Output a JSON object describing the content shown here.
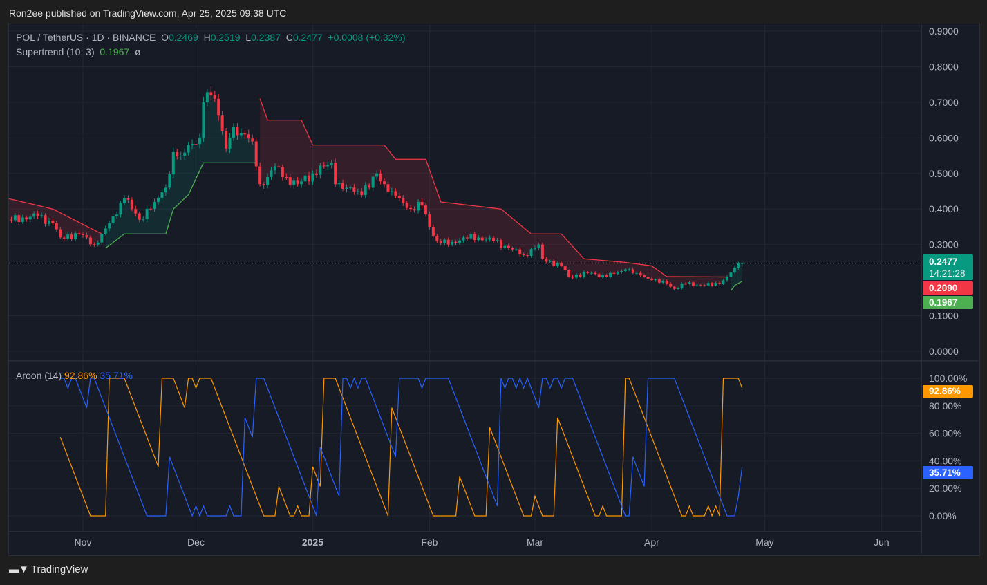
{
  "publish_line": "Ron2ee published on TradingView.com, Apr 25, 2025 09:38 UTC",
  "legend": {
    "symbol": "POL / TetherUS · 1D · BINANCE",
    "o_label": "O",
    "o": "0.2469",
    "h_label": "H",
    "h": "0.2519",
    "l_label": "L",
    "l": "0.2387",
    "c_label": "C",
    "c": "0.2477",
    "change": "+0.0008 (+0.32%)",
    "supertrend_label": "Supertrend (10, 3)",
    "supertrend_value": "0.1967",
    "supertrend_symbol": "ø",
    "aroon_label": "Aroon (14)",
    "aroon_up": "92.86%",
    "aroon_down": "35.71%"
  },
  "price_tags": {
    "last_price": "0.2477",
    "countdown": "14:21:28",
    "supertrend_down": "0.2090",
    "supertrend_up": "0.1967",
    "aroon_up": "92.86%",
    "aroon_down": "35.71%"
  },
  "footer": {
    "brand": "TradingView"
  },
  "colors": {
    "up": "#089981",
    "down": "#f23645",
    "supertrend_up": "#4caf50",
    "supertrend_down": "#f23645",
    "aroon_up": "#ff9800",
    "aroon_down": "#2962ff",
    "background": "#171b26"
  },
  "chart_data": {
    "type": "candlestick",
    "interval": "1D",
    "price_axis": {
      "ticks": [
        "0.9000",
        "0.8000",
        "0.7000",
        "0.6000",
        "0.5000",
        "0.4000",
        "0.3000",
        "0.1000",
        "0.0000"
      ],
      "range": [
        0,
        0.9
      ]
    },
    "aroon_axis": {
      "ticks": [
        "100.00%",
        "80.00%",
        "60.00%",
        "40.00%",
        "20.00%",
        "0.00%"
      ],
      "range": [
        0,
        100
      ]
    },
    "time_axis": [
      {
        "label": "Nov",
        "date": "2024-11-01"
      },
      {
        "label": "Dec",
        "date": "2024-12-01"
      },
      {
        "label": "2025",
        "date": "2025-01-01",
        "bold": true
      },
      {
        "label": "Feb",
        "date": "2025-02-01"
      },
      {
        "label": "Mar",
        "date": "2025-03-01"
      },
      {
        "label": "Apr",
        "date": "2025-04-01"
      },
      {
        "label": "May",
        "date": "2025-05-01"
      },
      {
        "label": "Jun",
        "date": "2025-06-01"
      }
    ],
    "close_keypoints": [
      [
        "2024-10-12",
        0.37
      ],
      [
        "2024-10-20",
        0.38
      ],
      [
        "2024-10-24",
        0.36
      ],
      [
        "2024-10-26",
        0.32
      ],
      [
        "2024-10-31",
        0.33
      ],
      [
        "2024-11-04",
        0.3
      ],
      [
        "2024-11-06",
        0.33
      ],
      [
        "2024-11-08",
        0.36
      ],
      [
        "2024-11-12",
        0.43
      ],
      [
        "2024-11-14",
        0.4
      ],
      [
        "2024-11-16",
        0.37
      ],
      [
        "2024-11-20",
        0.42
      ],
      [
        "2024-11-23",
        0.46
      ],
      [
        "2024-11-25",
        0.56
      ],
      [
        "2024-11-27",
        0.55
      ],
      [
        "2024-11-29",
        0.58
      ],
      [
        "2024-12-02",
        0.6
      ],
      [
        "2024-12-03",
        0.7
      ],
      [
        "2024-12-05",
        0.72
      ],
      [
        "2024-12-06",
        0.71
      ],
      [
        "2024-12-08",
        0.62
      ],
      [
        "2024-12-09",
        0.57
      ],
      [
        "2024-12-10",
        0.6
      ],
      [
        "2024-12-11",
        0.63
      ],
      [
        "2024-12-14",
        0.61
      ],
      [
        "2024-12-16",
        0.59
      ],
      [
        "2024-12-17",
        0.52
      ],
      [
        "2024-12-18",
        0.47
      ],
      [
        "2024-12-20",
        0.49
      ],
      [
        "2024-12-22",
        0.52
      ],
      [
        "2024-12-24",
        0.49
      ],
      [
        "2024-12-28",
        0.47
      ],
      [
        "2025-01-01",
        0.5
      ],
      [
        "2025-01-04",
        0.52
      ],
      [
        "2025-01-06",
        0.53
      ],
      [
        "2025-01-07",
        0.47
      ],
      [
        "2025-01-10",
        0.46
      ],
      [
        "2025-01-13",
        0.45
      ],
      [
        "2025-01-16",
        0.46
      ],
      [
        "2025-01-18",
        0.5
      ],
      [
        "2025-01-20",
        0.47
      ],
      [
        "2025-01-22",
        0.45
      ],
      [
        "2025-01-24",
        0.43
      ],
      [
        "2025-01-27",
        0.4
      ],
      [
        "2025-01-30",
        0.41
      ],
      [
        "2025-02-01",
        0.35
      ],
      [
        "2025-02-03",
        0.31
      ],
      [
        "2025-02-06",
        0.3
      ],
      [
        "2025-02-10",
        0.32
      ],
      [
        "2025-02-14",
        0.32
      ],
      [
        "2025-02-18",
        0.31
      ],
      [
        "2025-02-22",
        0.29
      ],
      [
        "2025-02-26",
        0.27
      ],
      [
        "2025-03-02",
        0.3
      ],
      [
        "2025-03-03",
        0.26
      ],
      [
        "2025-03-08",
        0.24
      ],
      [
        "2025-03-10",
        0.21
      ],
      [
        "2025-03-15",
        0.22
      ],
      [
        "2025-03-20",
        0.21
      ],
      [
        "2025-03-25",
        0.23
      ],
      [
        "2025-03-28",
        0.22
      ],
      [
        "2025-04-01",
        0.2
      ],
      [
        "2025-04-05",
        0.19
      ],
      [
        "2025-04-07",
        0.175
      ],
      [
        "2025-04-10",
        0.19
      ],
      [
        "2025-04-15",
        0.185
      ],
      [
        "2025-04-19",
        0.19
      ],
      [
        "2025-04-21",
        0.21
      ],
      [
        "2025-04-23",
        0.235
      ],
      [
        "2025-04-24",
        0.2469
      ],
      [
        "2025-04-25",
        0.2477
      ]
    ],
    "last_ohlc": {
      "open": 0.2469,
      "high": 0.2519,
      "low": 0.2387,
      "close": 0.2477
    },
    "supertrend": [
      {
        "trend": "down",
        "points": [
          [
            "2024-10-12",
            0.43
          ],
          [
            "2024-10-24",
            0.4
          ],
          [
            "2024-11-06",
            0.33
          ]
        ]
      },
      {
        "trend": "up",
        "points": [
          [
            "2024-11-07",
            0.29
          ],
          [
            "2024-11-12",
            0.33
          ],
          [
            "2024-11-23",
            0.33
          ],
          [
            "2024-11-25",
            0.4
          ],
          [
            "2024-11-29",
            0.44
          ],
          [
            "2024-12-03",
            0.53
          ],
          [
            "2024-12-17",
            0.53
          ]
        ]
      },
      {
        "trend": "down",
        "points": [
          [
            "2024-12-18",
            0.71
          ],
          [
            "2024-12-20",
            0.65
          ],
          [
            "2024-12-29",
            0.65
          ],
          [
            "2025-01-01",
            0.58
          ],
          [
            "2025-01-20",
            0.58
          ],
          [
            "2025-01-23",
            0.54
          ],
          [
            "2025-01-31",
            0.54
          ],
          [
            "2025-02-04",
            0.42
          ],
          [
            "2025-02-20",
            0.4
          ],
          [
            "2025-02-28",
            0.33
          ],
          [
            "2025-03-08",
            0.33
          ],
          [
            "2025-03-14",
            0.26
          ],
          [
            "2025-03-25",
            0.25
          ],
          [
            "2025-04-01",
            0.24
          ],
          [
            "2025-04-05",
            0.21
          ],
          [
            "2025-04-21",
            0.209
          ]
        ]
      },
      {
        "trend": "up",
        "points": [
          [
            "2025-04-22",
            0.17
          ],
          [
            "2025-04-23",
            0.185
          ],
          [
            "2025-04-25",
            0.1967
          ]
        ]
      }
    ],
    "aroon": {
      "period": 14,
      "up_last": 92.86,
      "down_last": 35.71
    }
  }
}
